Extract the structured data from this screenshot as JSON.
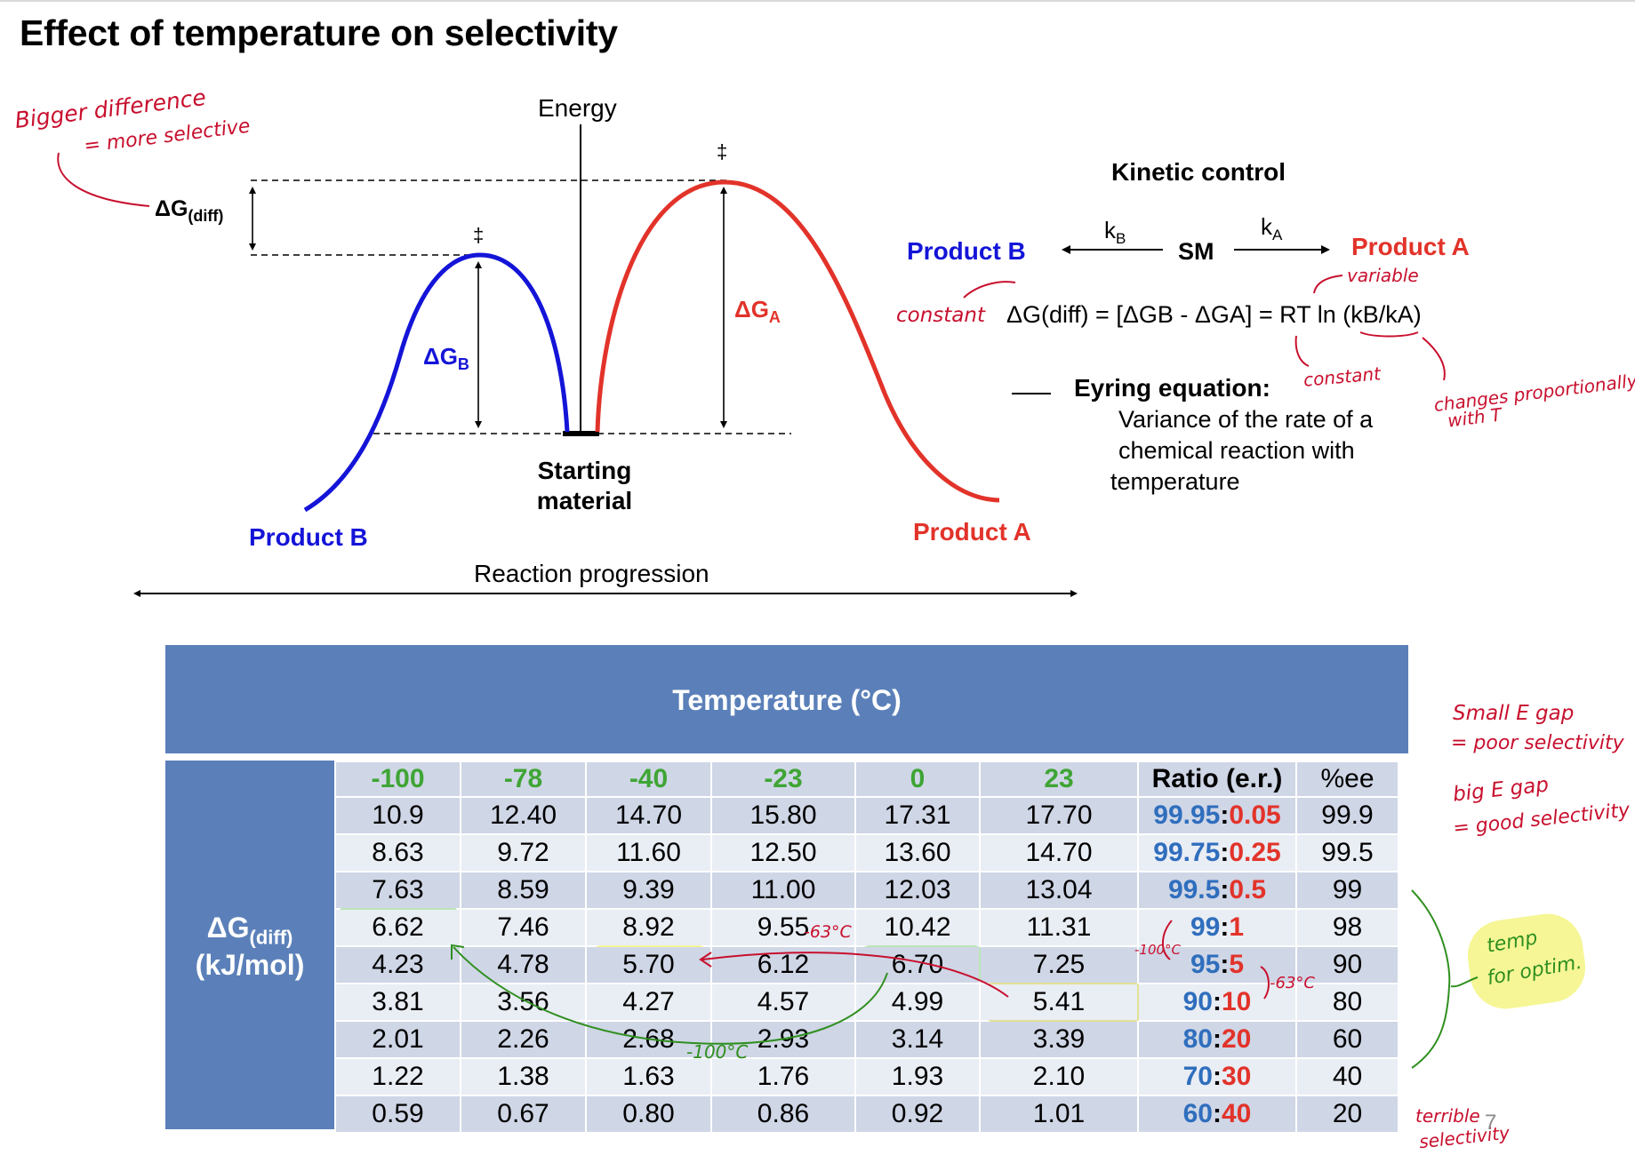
{
  "title": "Effect of temperature on selectivity",
  "diagram": {
    "energy_label": "Energy",
    "x_axis_label": "Reaction progression",
    "dagger": "‡",
    "dg_diff_main": "ΔG",
    "dg_diff_sub": "(diff)",
    "dg_a_main": "ΔG",
    "dg_a_sub": "A",
    "dg_b_main": "ΔG",
    "dg_b_sub": "B",
    "product_b": "Product B",
    "product_a": "Product A",
    "starting_material_1": "Starting",
    "starting_material_2": "material",
    "colors": {
      "product_b": "#1414d8",
      "product_a": "#e2332a"
    }
  },
  "kinetic": {
    "heading": "Kinetic control",
    "product_b": "Product B",
    "sm": "SM",
    "product_a": "Product A",
    "kb_main": "k",
    "kb_sub": "B",
    "ka_main": "k",
    "ka_sub": "A",
    "equation": "ΔG(diff) = [ΔGB - ΔGA] = RT ln (kB/kA)",
    "eyring_label": "Eyring equation:",
    "eyring_line1": "Variance of the rate of a",
    "eyring_line2": "chemical reaction with",
    "eyring_line3": "temperature"
  },
  "annotations": {
    "bigger_difference": "Bigger difference",
    "more_selective": "= more selective",
    "constant_left": "constant",
    "variable": "variable",
    "constant_right": "constant",
    "changes_1": "changes proportionally",
    "changes_2": "with T",
    "small_gap_1": "Small E gap",
    "small_gap_2": "= poor selectivity",
    "big_gap_1": "big E gap",
    "big_gap_2": "= good selectivity",
    "temp_optim_1": "temp",
    "temp_optim_2": "for optim.",
    "terrible_1": "terrible",
    "terrible_2": "selectivity",
    "minus63_a": "-63°C",
    "minus100_a": "-100°C",
    "minus100_b": "-100°C",
    "minus63_b": "-63°C"
  },
  "table": {
    "temperature_header": "Temperature (°C)",
    "row_header_main": "ΔG",
    "row_header_sub": "(diff)",
    "row_header_unit": "(kJ/mol)",
    "temperatures": [
      "-100",
      "-78",
      "-40",
      "-23",
      "0",
      "23"
    ],
    "ratio_header": "Ratio (e.r.)",
    "ee_header": "%ee",
    "rows": [
      {
        "values": [
          "10.9",
          "12.40",
          "14.70",
          "15.80",
          "17.31",
          "17.70"
        ],
        "ratio_major": "99.95",
        "ratio_minor": "0.05",
        "ee": "99.9"
      },
      {
        "values": [
          "8.63",
          "9.72",
          "11.60",
          "12.50",
          "13.60",
          "14.70"
        ],
        "ratio_major": "99.75",
        "ratio_minor": "0.25",
        "ee": "99.5"
      },
      {
        "values": [
          "7.63",
          "8.59",
          "9.39",
          "11.00",
          "12.03",
          "13.04"
        ],
        "ratio_major": "99.5",
        "ratio_minor": "0.5",
        "ee": "99"
      },
      {
        "values": [
          "6.62",
          "7.46",
          "8.92",
          "9.55",
          "10.42",
          "11.31"
        ],
        "ratio_major": "99",
        "ratio_minor": "1",
        "ee": "98"
      },
      {
        "values": [
          "4.23",
          "4.78",
          "5.70",
          "6.12",
          "6.70",
          "7.25"
        ],
        "ratio_major": "95",
        "ratio_minor": "5",
        "ee": "90"
      },
      {
        "values": [
          "3.81",
          "3.56",
          "4.27",
          "4.57",
          "4.99",
          "5.41"
        ],
        "ratio_major": "90",
        "ratio_minor": "10",
        "ee": "80"
      },
      {
        "values": [
          "2.01",
          "2.26",
          "2.68",
          "2.93",
          "3.14",
          "3.39"
        ],
        "ratio_major": "80",
        "ratio_minor": "20",
        "ee": "60"
      },
      {
        "values": [
          "1.22",
          "1.38",
          "1.63",
          "1.76",
          "1.93",
          "2.10"
        ],
        "ratio_major": "70",
        "ratio_minor": "30",
        "ee": "40"
      },
      {
        "values": [
          "0.59",
          "0.67",
          "0.80",
          "0.86",
          "0.92",
          "1.01"
        ],
        "ratio_major": "60",
        "ratio_minor": "40",
        "ee": "20"
      }
    ]
  },
  "page_number": "7"
}
